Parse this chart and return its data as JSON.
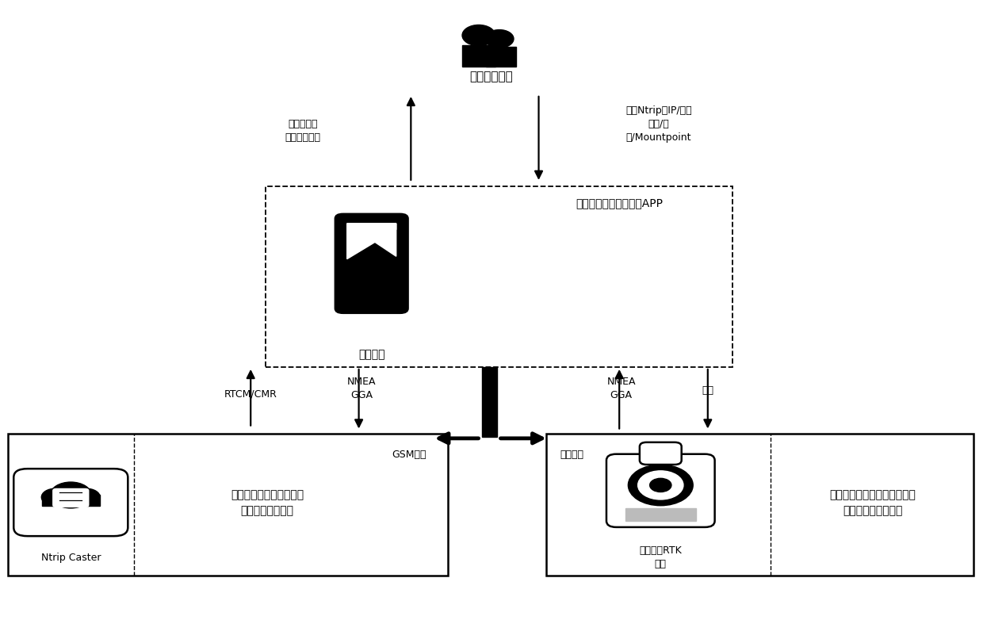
{
  "bg_color": "#ffffff",
  "fig_width": 12.4,
  "fig_height": 7.82,
  "person_label": "野外地质人员",
  "phone_app_label": "运行智能地质调查系统APP",
  "phone_label": "智能手机",
  "left_up_label1": "提供高精度",
  "left_up_label2": "位置坐标服务",
  "right_up_label1": "设置Ntrip的IP/端口",
  "right_up_label2": "账号/密",
  "right_up_label3": "码/Mountpoint",
  "arrow_rtcm": "RTCM/CMR",
  "arrow_nmea": "NMEA",
  "arrow_gga": "GGA",
  "arrow_supply": "供电",
  "ntrip_label": "Ntrip Caster",
  "left_text1": "基于野外人员位置，发送",
  "left_text2": "相应的差分改正数",
  "rtk_label1": "智能北斗RTK",
  "rtk_label2": "设备",
  "right_text1": "接收卫星定位信号和差分数据",
  "right_text2": "解算获得高精度定位",
  "gsm_label": "GSM通讯",
  "serial_label": "串口通讯"
}
